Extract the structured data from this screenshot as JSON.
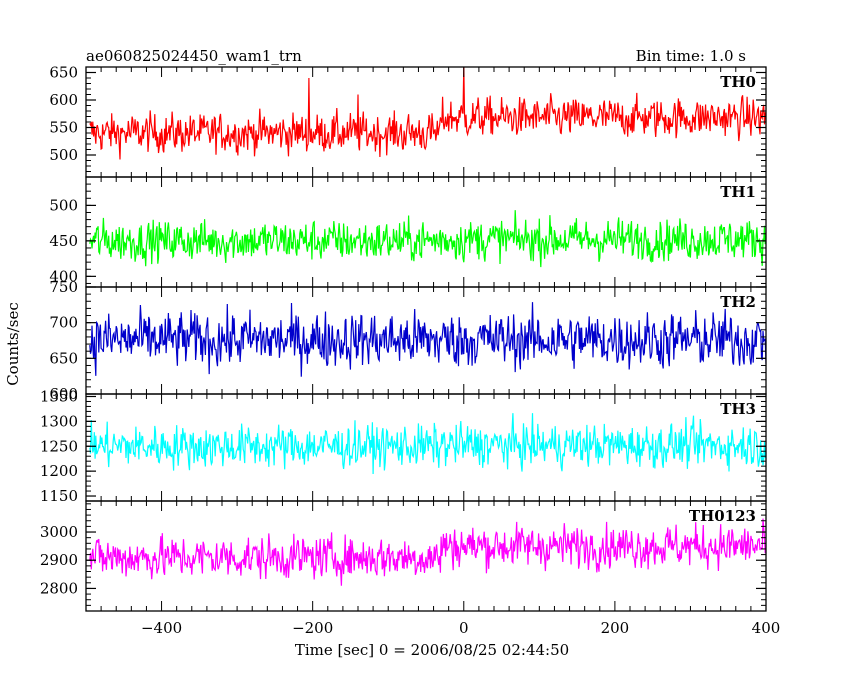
{
  "chart_data": {
    "type": "line",
    "title": "ae060825024450_wam1_trn",
    "bin_time_label": "Bin time: 1.0 s",
    "xlabel": "Time [sec] 0 = 2006/08/25 02:44:50",
    "ylabel": "Counts/sec",
    "xlim": [
      -500,
      400
    ],
    "x_ticks": [
      "−400",
      "−200",
      "0",
      "200",
      "400"
    ],
    "x_tick_values": [
      -400,
      -200,
      0,
      200,
      400
    ],
    "grid": false,
    "series": [
      {
        "name": "TH0",
        "color": "#ff0000",
        "ylim": [
          460,
          660
        ],
        "y_ticks": [
          500,
          550,
          600,
          650
        ],
        "mean_before": 540,
        "mean_after": 568,
        "noise": 33,
        "shift_at": -30,
        "spikes": [
          [
            -205,
            640
          ],
          [
            0,
            663
          ],
          [
            -140,
            610
          ]
        ]
      },
      {
        "name": "TH1",
        "color": "#00ff00",
        "ylim": [
          385,
          540
        ],
        "y_ticks": [
          400,
          450,
          500
        ],
        "mean_before": 450,
        "mean_after": 452,
        "noise": 27,
        "shift_at": -30,
        "spikes": []
      },
      {
        "name": "TH2",
        "color": "#0000cc",
        "ylim": [
          600,
          750
        ],
        "y_ticks": [
          600,
          650,
          700,
          750
        ],
        "mean_before": 676,
        "mean_after": 676,
        "noise": 36,
        "shift_at": -30,
        "spikes": []
      },
      {
        "name": "TH3",
        "color": "#00ffff",
        "ylim": [
          1140,
          1355
        ],
        "y_ticks": [
          1150,
          1200,
          1250,
          1300,
          1350
        ],
        "mean_before": 1250,
        "mean_after": 1252,
        "noise": 40,
        "shift_at": -30,
        "spikes": []
      },
      {
        "name": "TH0123",
        "color": "#ff00ff",
        "ylim": [
          2720,
          3110
        ],
        "y_ticks": [
          2800,
          2900,
          3000
        ],
        "mean_before": 2910,
        "mean_after": 2950,
        "noise": 70,
        "shift_at": -30,
        "spikes": []
      }
    ]
  }
}
